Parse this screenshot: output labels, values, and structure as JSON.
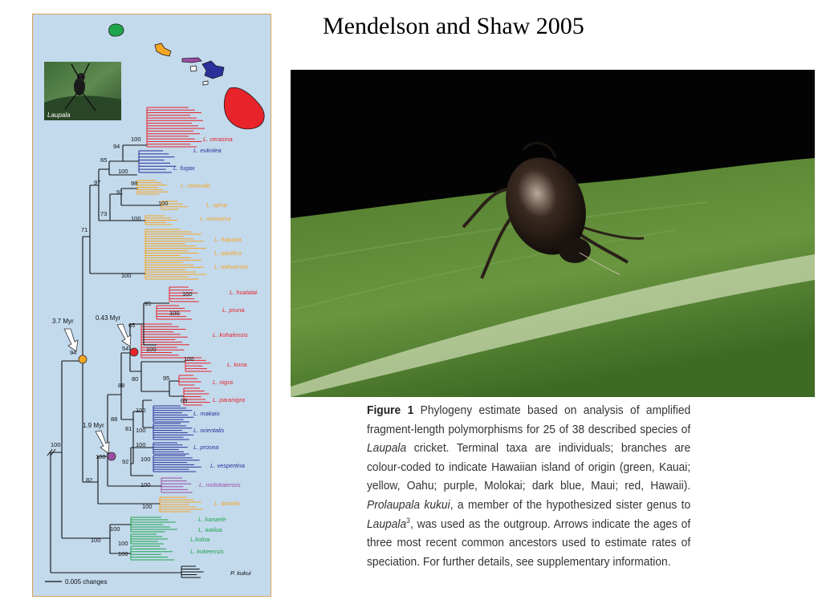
{
  "slide": {
    "title": "Mendelson and Shaw 2005"
  },
  "inset": {
    "label": "Laupala"
  },
  "colors": {
    "kauai": "#1ea54a",
    "oahu": "#f5a623",
    "molokai": "#9b4fa5",
    "maui": "#29309a",
    "hawaii": "#e8232a",
    "outgroup": "#111111"
  },
  "species": {
    "cerasina": "L. cerasina",
    "eukolea": "L. eukolea",
    "fugax": "L. fugax",
    "melewiki": "L. melewiki",
    "spisa": "L. spisa",
    "neospisa": "L. neospisa",
    "hapapa": "L. hapapa",
    "pacifica": "L. pacifica",
    "oahuensis": "L. oahuensis",
    "hualalai": "L. hualalai",
    "pruna": "L. pruna",
    "kohalensis": "L. kohalensis",
    "kona": "L. kona",
    "nigra": "L. nigra",
    "paranigra": "L. paranigra",
    "makaio": "L. makaio",
    "orientalis": "L. orientalis",
    "prosea": "L. prosea",
    "vespertina": "L. vespertina",
    "molokaiensis": "L. molokaiensis",
    "tantalis": "L. tantalis",
    "kanaele": "L. kanaele",
    "wailua": "L. wailua",
    "koloa": "L.koloa",
    "kokeensis": "L. kokeensis",
    "kukui": "P. kukui"
  },
  "support": {
    "s1": "100",
    "s2": "94",
    "s3": "65",
    "s4": "100",
    "s5": "97",
    "s6": "98",
    "s7": "91",
    "s8": "100",
    "s9": "73",
    "s10": "100",
    "s11": "71",
    "s12": "100",
    "s13": "100",
    "s14": "95",
    "s15": "100",
    "s16": "65",
    "s17": "54",
    "s18": "100",
    "s19": "100",
    "s20": "80",
    "s21": "95",
    "s22": "69",
    "s23": "88",
    "s24": "100",
    "s25": "88",
    "s26": "81",
    "s27": "100",
    "s28": "100",
    "s29": "100",
    "s30": "92",
    "s31": "100",
    "s32": "100",
    "s33": "82",
    "s34": "94",
    "s35": "100",
    "s36": "100",
    "s37": "100",
    "s38": "100",
    "s39": "100",
    "s40": "100"
  },
  "ages": {
    "a1": "3.7 Myr",
    "a2": "0.43 Myr",
    "a3": "1.9 Myr"
  },
  "scale_label": "0.005 changes",
  "caption": {
    "fig_label": "Figure 1",
    "part1": " Phylogeny estimate based on analysis of amplified fragment-length polymorphisms for 25 of 38 described species of ",
    "genus1": "Laupala",
    "part2": " cricket. Terminal taxa are individuals; branches are colour-coded to indicate Hawaiian island of origin (green, Kauai; yellow, Oahu; purple, Molokai; dark blue, Maui; red, Hawaii). ",
    "species": "Prolaupala kukui",
    "part3": ", a member of the hypothesized sister genus to ",
    "genus2": "Laupala",
    "ref": "3",
    "part4": ", was used as the outgroup. Arrows indicate the ages of three most recent common ancestors used to estimate rates of speciation. For further details, see supplementary information."
  }
}
